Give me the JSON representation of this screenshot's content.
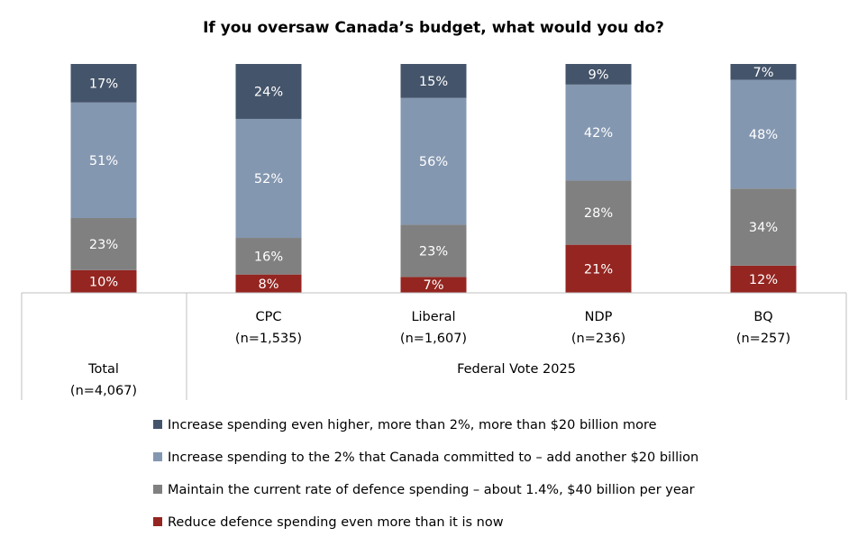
{
  "chart_data": {
    "type": "bar",
    "stacked": true,
    "title": "If you oversaw Canada’s budget, what would you do?",
    "categories": [
      {
        "name": "Total",
        "n": "(n=4,067)"
      },
      {
        "name": "CPC",
        "n": "(n=1,535)"
      },
      {
        "name": "Liberal",
        "n": "(n=1,607)"
      },
      {
        "name": "NDP",
        "n": "(n=236)"
      },
      {
        "name": "BQ",
        "n": "(n=257)"
      }
    ],
    "group_label": "Federal Vote 2025",
    "series": [
      {
        "name": "Reduce defence spending even more than it is now",
        "color": "#942520",
        "values": [
          10,
          8,
          7,
          21,
          12
        ]
      },
      {
        "name": "Maintain the current rate of defence spending – about 1.4%, $40 billion per year",
        "color": "#808080",
        "values": [
          23,
          16,
          23,
          28,
          34
        ]
      },
      {
        "name": "Increase spending to the 2% that Canada committed to – add another $20 billion",
        "color": "#8497b0",
        "values": [
          51,
          52,
          56,
          42,
          48
        ]
      },
      {
        "name": "Increase spending even higher, more than 2%, more than $20 billion more",
        "color": "#44546a",
        "values": [
          17,
          24,
          15,
          9,
          7
        ]
      }
    ],
    "value_suffix": "%",
    "legend_position": "bottom",
    "ylim": [
      0,
      100
    ]
  }
}
